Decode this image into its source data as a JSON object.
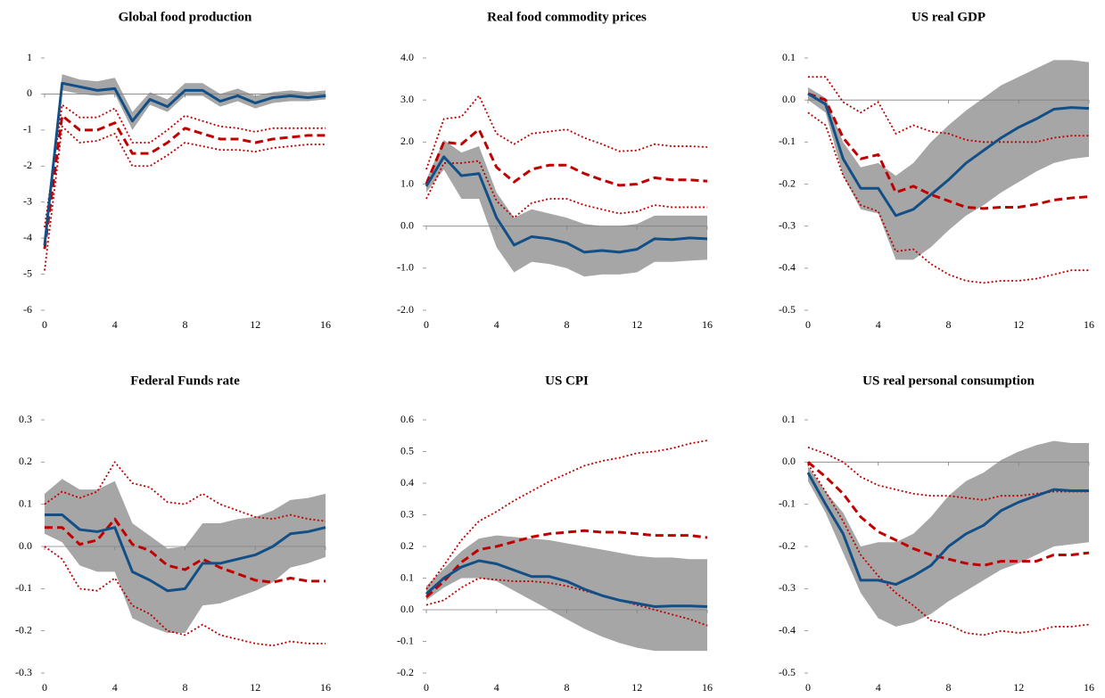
{
  "chart_data": [
    {
      "type": "line",
      "title": "Global food production",
      "x": [
        0,
        1,
        2,
        3,
        4,
        5,
        6,
        7,
        8,
        9,
        10,
        11,
        12,
        13,
        14,
        15,
        16
      ],
      "xlim": [
        0,
        16
      ],
      "xticks": [
        0,
        4,
        8,
        12,
        16
      ],
      "ylim": [
        -6,
        1
      ],
      "yticks": [
        -6,
        -5,
        -4,
        -3,
        -2,
        -1,
        0,
        1
      ],
      "band": {
        "color": "#a6a6a6",
        "lower": [
          -4.3,
          0.1,
          0.0,
          -0.05,
          0.0,
          -1.0,
          -0.3,
          -0.5,
          -0.05,
          -0.05,
          -0.35,
          -0.2,
          -0.4,
          -0.25,
          -0.2,
          -0.2,
          -0.15
        ],
        "upper": [
          -4.0,
          0.55,
          0.4,
          0.35,
          0.45,
          -0.5,
          0.05,
          -0.15,
          0.3,
          0.3,
          0.0,
          0.15,
          -0.05,
          0.05,
          0.1,
          0.05,
          0.1
        ]
      },
      "series": [
        {
          "color": "#c00000",
          "style": "dotted",
          "values": [
            -4.9,
            -0.9,
            -1.35,
            -1.3,
            -1.1,
            -2.0,
            -2.0,
            -1.7,
            -1.35,
            -1.45,
            -1.55,
            -1.55,
            -1.6,
            -1.5,
            -1.45,
            -1.4,
            -1.4
          ]
        },
        {
          "color": "#c00000",
          "style": "dotted",
          "values": [
            -3.7,
            -0.3,
            -0.65,
            -0.65,
            -0.4,
            -1.35,
            -1.35,
            -1.0,
            -0.6,
            -0.75,
            -0.9,
            -0.95,
            -1.05,
            -0.95,
            -0.95,
            -0.95,
            -0.95
          ]
        },
        {
          "color": "#c00000",
          "style": "dashed",
          "values": [
            -4.3,
            -0.6,
            -1.0,
            -1.0,
            -0.8,
            -1.65,
            -1.65,
            -1.35,
            -0.95,
            -1.1,
            -1.25,
            -1.25,
            -1.35,
            -1.25,
            -1.2,
            -1.15,
            -1.15
          ]
        },
        {
          "color": "#124f86",
          "style": "solid",
          "values": [
            -4.2,
            0.3,
            0.2,
            0.1,
            0.15,
            -0.75,
            -0.15,
            -0.35,
            0.1,
            0.1,
            -0.2,
            -0.05,
            -0.25,
            -0.1,
            -0.05,
            -0.1,
            -0.05
          ]
        }
      ]
    },
    {
      "type": "line",
      "title": "Real food commodity prices",
      "x": [
        0,
        1,
        2,
        3,
        4,
        5,
        6,
        7,
        8,
        9,
        10,
        11,
        12,
        13,
        14,
        15,
        16
      ],
      "xlim": [
        0,
        16
      ],
      "xticks": [
        0,
        4,
        8,
        12,
        16
      ],
      "ylim": [
        -2,
        4
      ],
      "yticks": [
        {
          "value": -2,
          "label": "-2.0"
        },
        {
          "value": -1,
          "label": "-1.0"
        },
        {
          "value": 0,
          "label": "0.0"
        },
        {
          "value": 1,
          "label": "1.0"
        },
        {
          "value": 2,
          "label": "2.0"
        },
        {
          "value": 3,
          "label": "3.0"
        },
        {
          "value": 4,
          "label": "4.0"
        }
      ],
      "band": {
        "color": "#a6a6a6",
        "lower": [
          0.8,
          1.35,
          0.65,
          0.65,
          -0.5,
          -1.1,
          -0.85,
          -0.9,
          -1.0,
          -1.2,
          -1.15,
          -1.15,
          -1.1,
          -0.85,
          -0.85,
          -0.82,
          -0.8
        ],
        "upper": [
          1.1,
          2.05,
          1.75,
          1.9,
          0.8,
          0.2,
          0.4,
          0.3,
          0.2,
          0.05,
          0.0,
          0.0,
          0.05,
          0.25,
          0.25,
          0.25,
          0.25
        ]
      },
      "series": [
        {
          "color": "#c00000",
          "style": "dotted",
          "values": [
            0.65,
            1.5,
            1.5,
            1.55,
            0.6,
            0.2,
            0.55,
            0.65,
            0.65,
            0.5,
            0.4,
            0.3,
            0.35,
            0.5,
            0.45,
            0.45,
            0.45
          ]
        },
        {
          "color": "#c00000",
          "style": "dotted",
          "values": [
            1.35,
            2.55,
            2.6,
            3.1,
            2.2,
            1.95,
            2.2,
            2.25,
            2.3,
            2.1,
            1.95,
            1.78,
            1.8,
            1.95,
            1.9,
            1.9,
            1.88
          ]
        },
        {
          "color": "#c00000",
          "style": "dashed",
          "values": [
            1.0,
            2.0,
            1.95,
            2.3,
            1.4,
            1.05,
            1.35,
            1.45,
            1.45,
            1.25,
            1.1,
            0.97,
            1.0,
            1.15,
            1.1,
            1.1,
            1.07
          ]
        },
        {
          "color": "#124f86",
          "style": "solid",
          "values": [
            0.95,
            1.65,
            1.2,
            1.25,
            0.2,
            -0.45,
            -0.25,
            -0.3,
            -0.4,
            -0.62,
            -0.58,
            -0.62,
            -0.55,
            -0.3,
            -0.32,
            -0.28,
            -0.3
          ]
        }
      ]
    },
    {
      "type": "line",
      "title": "US real GDP",
      "x": [
        0,
        1,
        2,
        3,
        4,
        5,
        6,
        7,
        8,
        9,
        10,
        11,
        12,
        13,
        14,
        15,
        16
      ],
      "xlim": [
        0,
        16
      ],
      "xticks": [
        0,
        4,
        8,
        12,
        16
      ],
      "ylim": [
        -0.5,
        0.1
      ],
      "yticks": [
        -0.5,
        -0.4,
        -0.3,
        -0.2,
        -0.1,
        {
          "value": 0,
          "label": "0.0"
        },
        0.1
      ],
      "band": {
        "color": "#a6a6a6",
        "lower": [
          0.0,
          -0.03,
          -0.18,
          -0.26,
          -0.27,
          -0.38,
          -0.38,
          -0.35,
          -0.31,
          -0.275,
          -0.25,
          -0.22,
          -0.195,
          -0.17,
          -0.15,
          -0.14,
          -0.135
        ],
        "upper": [
          0.03,
          0.005,
          -0.1,
          -0.16,
          -0.15,
          -0.18,
          -0.15,
          -0.1,
          -0.06,
          -0.025,
          0.005,
          0.035,
          0.055,
          0.075,
          0.095,
          0.095,
          0.09
        ]
      },
      "series": [
        {
          "color": "#c00000",
          "style": "dotted",
          "values": [
            -0.03,
            -0.06,
            -0.18,
            -0.25,
            -0.265,
            -0.36,
            -0.355,
            -0.39,
            -0.415,
            -0.43,
            -0.435,
            -0.43,
            -0.43,
            -0.425,
            -0.415,
            -0.405,
            -0.405
          ]
        },
        {
          "color": "#c00000",
          "style": "dotted",
          "values": [
            0.055,
            0.055,
            -0.005,
            -0.03,
            -0.005,
            -0.08,
            -0.06,
            -0.075,
            -0.08,
            -0.095,
            -0.1,
            -0.1,
            -0.1,
            -0.1,
            -0.09,
            -0.085,
            -0.085
          ]
        },
        {
          "color": "#c00000",
          "style": "dashed",
          "values": [
            0.015,
            0.0,
            -0.09,
            -0.14,
            -0.13,
            -0.22,
            -0.205,
            -0.225,
            -0.24,
            -0.255,
            -0.258,
            -0.255,
            -0.255,
            -0.248,
            -0.238,
            -0.233,
            -0.23
          ]
        },
        {
          "color": "#124f86",
          "style": "solid",
          "values": [
            0.015,
            -0.01,
            -0.14,
            -0.21,
            -0.21,
            -0.275,
            -0.26,
            -0.225,
            -0.19,
            -0.15,
            -0.12,
            -0.09,
            -0.065,
            -0.045,
            -0.022,
            -0.018,
            -0.02
          ]
        }
      ]
    },
    {
      "type": "line",
      "title": "Federal Funds rate",
      "x": [
        0,
        1,
        2,
        3,
        4,
        5,
        6,
        7,
        8,
        9,
        10,
        11,
        12,
        13,
        14,
        15,
        16
      ],
      "xlim": [
        0,
        16
      ],
      "xticks": [
        0,
        4,
        8,
        12,
        16
      ],
      "ylim": [
        -0.3,
        0.3
      ],
      "yticks": [
        -0.3,
        -0.2,
        -0.1,
        {
          "value": 0,
          "label": "0.0"
        },
        0.1,
        0.2,
        0.3
      ],
      "band": {
        "color": "#a6a6a6",
        "lower": [
          0.03,
          0.01,
          -0.045,
          -0.06,
          -0.06,
          -0.17,
          -0.19,
          -0.205,
          -0.205,
          -0.14,
          -0.135,
          -0.12,
          -0.105,
          -0.085,
          -0.05,
          -0.04,
          -0.025
        ],
        "upper": [
          0.125,
          0.16,
          0.135,
          0.135,
          0.155,
          0.055,
          0.025,
          -0.005,
          0.0,
          0.055,
          0.055,
          0.065,
          0.07,
          0.085,
          0.11,
          0.115,
          0.125
        ]
      },
      "series": [
        {
          "color": "#c00000",
          "style": "dotted",
          "values": [
            0.0,
            -0.03,
            -0.1,
            -0.105,
            -0.075,
            -0.14,
            -0.16,
            -0.2,
            -0.21,
            -0.185,
            -0.21,
            -0.22,
            -0.23,
            -0.235,
            -0.225,
            -0.23,
            -0.23
          ]
        },
        {
          "color": "#c00000",
          "style": "dotted",
          "values": [
            0.1,
            0.13,
            0.115,
            0.13,
            0.2,
            0.15,
            0.14,
            0.105,
            0.1,
            0.125,
            0.1,
            0.085,
            0.07,
            0.065,
            0.075,
            0.065,
            0.06
          ]
        },
        {
          "color": "#c00000",
          "style": "dashed",
          "values": [
            0.045,
            0.045,
            0.005,
            0.015,
            0.065,
            0.005,
            -0.01,
            -0.045,
            -0.055,
            -0.03,
            -0.05,
            -0.065,
            -0.08,
            -0.085,
            -0.075,
            -0.082,
            -0.082
          ]
        },
        {
          "color": "#124f86",
          "style": "solid",
          "values": [
            0.075,
            0.075,
            0.04,
            0.035,
            0.045,
            -0.06,
            -0.08,
            -0.105,
            -0.1,
            -0.04,
            -0.04,
            -0.03,
            -0.02,
            0.0,
            0.03,
            0.035,
            0.045
          ]
        }
      ]
    },
    {
      "type": "line",
      "title": "US CPI",
      "x": [
        0,
        1,
        2,
        3,
        4,
        5,
        6,
        7,
        8,
        9,
        10,
        11,
        12,
        13,
        14,
        15,
        16
      ],
      "xlim": [
        0,
        16
      ],
      "xticks": [
        0,
        4,
        8,
        12,
        16
      ],
      "ylim": [
        -0.2,
        0.6
      ],
      "yticks": [
        -0.2,
        -0.1,
        {
          "value": 0,
          "label": "0.0"
        },
        0.1,
        0.2,
        0.3,
        0.4,
        0.5,
        0.6
      ],
      "band": {
        "color": "#a6a6a6",
        "lower": [
          0.03,
          0.07,
          0.1,
          0.1,
          0.09,
          0.06,
          0.03,
          0.0,
          -0.03,
          -0.06,
          -0.085,
          -0.105,
          -0.12,
          -0.13,
          -0.13,
          -0.13,
          -0.13
        ],
        "upper": [
          0.075,
          0.13,
          0.185,
          0.225,
          0.235,
          0.23,
          0.225,
          0.22,
          0.21,
          0.2,
          0.19,
          0.18,
          0.17,
          0.165,
          0.165,
          0.16,
          0.16
        ]
      },
      "series": [
        {
          "color": "#c00000",
          "style": "dotted",
          "values": [
            0.015,
            0.03,
            0.07,
            0.1,
            0.095,
            0.09,
            0.09,
            0.085,
            0.075,
            0.06,
            0.045,
            0.03,
            0.015,
            0.0,
            -0.015,
            -0.03,
            -0.05
          ]
        },
        {
          "color": "#c00000",
          "style": "dotted",
          "values": [
            0.065,
            0.14,
            0.22,
            0.28,
            0.31,
            0.345,
            0.375,
            0.405,
            0.43,
            0.455,
            0.47,
            0.48,
            0.495,
            0.5,
            0.51,
            0.525,
            0.535
          ]
        },
        {
          "color": "#c00000",
          "style": "dashed",
          "values": [
            0.04,
            0.09,
            0.15,
            0.19,
            0.2,
            0.215,
            0.23,
            0.24,
            0.245,
            0.25,
            0.245,
            0.245,
            0.24,
            0.235,
            0.235,
            0.235,
            0.228
          ]
        },
        {
          "color": "#124f86",
          "style": "solid",
          "values": [
            0.05,
            0.1,
            0.135,
            0.155,
            0.145,
            0.125,
            0.105,
            0.105,
            0.09,
            0.065,
            0.045,
            0.03,
            0.02,
            0.01,
            0.012,
            0.012,
            0.01
          ]
        }
      ]
    },
    {
      "type": "line",
      "title": "US real personal consumption",
      "x": [
        0,
        1,
        2,
        3,
        4,
        5,
        6,
        7,
        8,
        9,
        10,
        11,
        12,
        13,
        14,
        15,
        16
      ],
      "xlim": [
        0,
        16
      ],
      "xticks": [
        0,
        4,
        8,
        12,
        16
      ],
      "ylim": [
        -0.5,
        0.1
      ],
      "yticks": [
        -0.5,
        -0.4,
        -0.3,
        -0.2,
        -0.1,
        {
          "value": 0,
          "label": "0.0"
        },
        0.1
      ],
      "band": {
        "color": "#a6a6a6",
        "lower": [
          -0.045,
          -0.12,
          -0.215,
          -0.31,
          -0.37,
          -0.39,
          -0.38,
          -0.36,
          -0.33,
          -0.305,
          -0.28,
          -0.255,
          -0.24,
          -0.22,
          -0.2,
          -0.195,
          -0.19
        ],
        "upper": [
          -0.01,
          -0.07,
          -0.12,
          -0.2,
          -0.19,
          -0.19,
          -0.17,
          -0.13,
          -0.08,
          -0.045,
          -0.025,
          0.005,
          0.025,
          0.04,
          0.05,
          0.045,
          0.045
        ]
      },
      "series": [
        {
          "color": "#c00000",
          "style": "dotted",
          "values": [
            -0.005,
            -0.07,
            -0.14,
            -0.22,
            -0.27,
            -0.31,
            -0.34,
            -0.375,
            -0.385,
            -0.405,
            -0.41,
            -0.4,
            -0.405,
            -0.4,
            -0.39,
            -0.39,
            -0.385
          ]
        },
        {
          "color": "#c00000",
          "style": "dotted",
          "values": [
            0.035,
            0.02,
            0.0,
            -0.035,
            -0.055,
            -0.065,
            -0.075,
            -0.08,
            -0.08,
            -0.085,
            -0.09,
            -0.08,
            -0.08,
            -0.075,
            -0.07,
            -0.07,
            -0.07
          ]
        },
        {
          "color": "#c00000",
          "style": "dashed",
          "values": [
            0.0,
            -0.035,
            -0.075,
            -0.13,
            -0.165,
            -0.185,
            -0.205,
            -0.22,
            -0.23,
            -0.24,
            -0.245,
            -0.235,
            -0.235,
            -0.235,
            -0.22,
            -0.22,
            -0.215
          ]
        },
        {
          "color": "#124f86",
          "style": "solid",
          "values": [
            -0.025,
            -0.1,
            -0.17,
            -0.28,
            -0.28,
            -0.29,
            -0.27,
            -0.245,
            -0.2,
            -0.17,
            -0.15,
            -0.115,
            -0.095,
            -0.08,
            -0.065,
            -0.068,
            -0.068
          ]
        }
      ]
    }
  ]
}
